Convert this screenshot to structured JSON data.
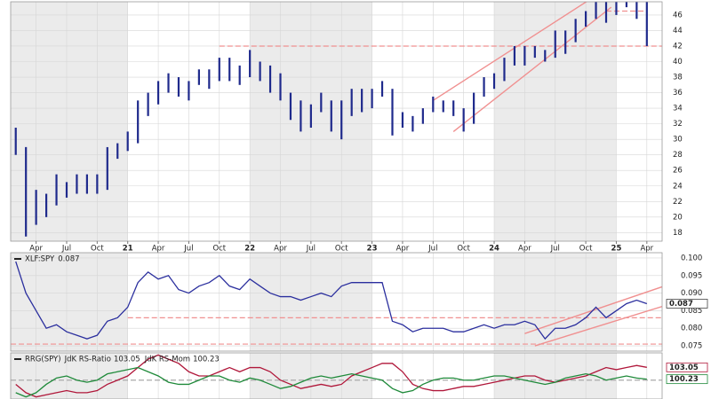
{
  "chart_data": [
    {
      "type": "ohlc",
      "color": "#1f2a8c",
      "annotation_color": "#f09090",
      "x": [
        0,
        1,
        2,
        3,
        4,
        5,
        6,
        7,
        8,
        9,
        10,
        11,
        12,
        13,
        14,
        15,
        16,
        17,
        18,
        19,
        20,
        21,
        22,
        23,
        24,
        25,
        26,
        27,
        28,
        29,
        30,
        31,
        32,
        33,
        34,
        35,
        36,
        37,
        38,
        39,
        40,
        41,
        42,
        43,
        44,
        45,
        46,
        47,
        48,
        49,
        50,
        51,
        52,
        53,
        54,
        55,
        56,
        57,
        58,
        59,
        60,
        61,
        62
      ],
      "high": [
        31.5,
        29,
        23.5,
        23,
        25.5,
        24.5,
        25.5,
        25.5,
        25.5,
        29,
        29.5,
        31,
        35,
        36,
        37.5,
        38.5,
        38,
        37.5,
        39,
        39,
        40.5,
        40.5,
        39.5,
        41.5,
        40,
        39.5,
        38.5,
        36,
        35,
        34.5,
        36,
        35,
        35,
        36.5,
        36.5,
        36.5,
        37.5,
        36.5,
        33.5,
        33,
        34,
        35.5,
        35,
        35,
        34,
        36,
        38,
        38.5,
        40.5,
        42,
        42,
        42,
        41.5,
        44,
        44,
        45.5,
        46.5,
        49,
        48.5,
        48.5,
        48.5,
        48.5,
        48.5
      ],
      "low": [
        28,
        17.5,
        19,
        20,
        21.5,
        22.5,
        23,
        23,
        23,
        23.5,
        27.5,
        28.5,
        29.5,
        33,
        34.5,
        36,
        35.5,
        35,
        37,
        36.5,
        37.5,
        37.5,
        37,
        38,
        37.5,
        36,
        35,
        32.5,
        31,
        31.5,
        33.5,
        31,
        30,
        33,
        33.5,
        34,
        35.5,
        30.5,
        31.5,
        31,
        32,
        33.5,
        33.5,
        33,
        31,
        32,
        35.5,
        36.5,
        37.5,
        39.5,
        39.5,
        40.5,
        40,
        40.5,
        41,
        42.5,
        44.5,
        45.5,
        45,
        46,
        47,
        45.5,
        42
      ],
      "xlim": [
        -0.5,
        63.5
      ],
      "xticks": [
        {
          "value": 2,
          "label": "Apr"
        },
        {
          "value": 5,
          "label": "Jul"
        },
        {
          "value": 8,
          "label": "Oct"
        },
        {
          "value": 11,
          "label": "21"
        },
        {
          "value": 14,
          "label": "Apr"
        },
        {
          "value": 17,
          "label": "Jul"
        },
        {
          "value": 20,
          "label": "Oct"
        },
        {
          "value": 23,
          "label": "22"
        },
        {
          "value": 26,
          "label": "Apr"
        },
        {
          "value": 29,
          "label": "Jul"
        },
        {
          "value": 32,
          "label": "Oct"
        },
        {
          "value": 35,
          "label": "23"
        },
        {
          "value": 38,
          "label": "Apr"
        },
        {
          "value": 41,
          "label": "Jul"
        },
        {
          "value": 44,
          "label": "Oct"
        },
        {
          "value": 47,
          "label": "24"
        },
        {
          "value": 50,
          "label": "Apr"
        },
        {
          "value": 53,
          "label": "Jul"
        },
        {
          "value": 56,
          "label": "Oct"
        },
        {
          "value": 59,
          "label": "25"
        },
        {
          "value": 62,
          "label": "Apr"
        }
      ],
      "ylim": [
        16.9,
        47.7
      ],
      "yticks": [
        18,
        20,
        22,
        24,
        26,
        28,
        30,
        32,
        34,
        36,
        38,
        40,
        42,
        44,
        46
      ],
      "hlines": [
        {
          "value": 42,
          "x": [
            20,
            63.5
          ]
        },
        {
          "value": 46.5,
          "x": [
            58,
            62
          ]
        }
      ],
      "trendlines": [
        {
          "x": [
            41,
            57
          ],
          "y": [
            35,
            48.5
          ]
        },
        {
          "x": [
            43,
            58.5
          ],
          "y": [
            31,
            47
          ]
        }
      ]
    },
    {
      "type": "line",
      "title": "XLF:SPY",
      "annotation_color": "#f09090",
      "x": [
        0,
        1,
        2,
        3,
        4,
        5,
        6,
        7,
        8,
        9,
        10,
        11,
        12,
        13,
        14,
        15,
        16,
        17,
        18,
        19,
        20,
        21,
        22,
        23,
        24,
        25,
        26,
        27,
        28,
        29,
        30,
        31,
        32,
        33,
        34,
        35,
        36,
        37,
        38,
        39,
        40,
        41,
        42,
        43,
        44,
        45,
        46,
        47,
        48,
        49,
        50,
        51,
        52,
        53,
        54,
        55,
        56,
        57,
        58,
        59,
        60,
        61,
        62
      ],
      "series": [
        {
          "color": "#2b2f9e",
          "values": [
            0.099,
            0.09,
            0.085,
            0.08,
            0.081,
            0.079,
            0.078,
            0.077,
            0.078,
            0.082,
            0.083,
            0.086,
            0.093,
            0.096,
            0.094,
            0.095,
            0.091,
            0.09,
            0.092,
            0.093,
            0.095,
            0.092,
            0.091,
            0.094,
            0.092,
            0.09,
            0.089,
            0.089,
            0.088,
            0.089,
            0.09,
            0.089,
            0.092,
            0.093,
            0.093,
            0.093,
            0.093,
            0.082,
            0.081,
            0.079,
            0.08,
            0.08,
            0.08,
            0.079,
            0.079,
            0.08,
            0.081,
            0.08,
            0.081,
            0.081,
            0.082,
            0.081,
            0.077,
            0.08,
            0.08,
            0.081,
            0.083,
            0.086,
            0.083,
            0.085,
            0.087,
            0.088,
            0.087
          ]
        }
      ],
      "xlim": [
        -0.5,
        63.5
      ],
      "ylim": [
        0.0735,
        0.1015
      ],
      "yticks": [
        0.075,
        {
          "value": 0.08,
          "label": "0.080"
        },
        0.085,
        {
          "value": 0.09,
          "label": "0.090"
        },
        0.095,
        {
          "value": 0.1,
          "label": "0.100"
        }
      ],
      "hlines": [
        {
          "value": 0.083,
          "x": [
            11,
            63.5
          ]
        },
        {
          "value": 0.0755,
          "x": [
            -0.5,
            63.5
          ]
        }
      ],
      "trendlines": [
        {
          "x": [
            50,
            63.5
          ],
          "y": [
            0.0785,
            0.0918
          ]
        },
        {
          "x": [
            51,
            63.5
          ],
          "y": [
            0.075,
            0.0862
          ]
        }
      ]
    },
    {
      "type": "line",
      "title": "RRG(SPY)",
      "annotation_color": "#aaaaaa",
      "x": [
        0,
        1,
        2,
        3,
        4,
        5,
        6,
        7,
        8,
        9,
        10,
        11,
        12,
        13,
        14,
        15,
        16,
        17,
        18,
        19,
        20,
        21,
        22,
        23,
        24,
        25,
        26,
        27,
        28,
        29,
        30,
        31,
        32,
        33,
        34,
        35,
        36,
        37,
        38,
        39,
        40,
        41,
        42,
        43,
        44,
        45,
        46,
        47,
        48,
        49,
        50,
        51,
        52,
        53,
        54,
        55,
        56,
        57,
        58,
        59,
        60,
        61,
        62
      ],
      "series": [
        {
          "name": "JdK RS-Ratio",
          "color": "#b0173a",
          "values": [
            99,
            97,
            96,
            96.5,
            97,
            97.5,
            97,
            97,
            97.5,
            99,
            100,
            101,
            103,
            105,
            106,
            105,
            104,
            102,
            101,
            101,
            102,
            103,
            102,
            103,
            103,
            102,
            100,
            99,
            98,
            98.5,
            99,
            98.5,
            99,
            101,
            102,
            103,
            104,
            104,
            102,
            99,
            98,
            97.5,
            97.5,
            98,
            98.5,
            98.5,
            99,
            99.5,
            100,
            100.5,
            101,
            101,
            100,
            99.5,
            100,
            100.5,
            101,
            102,
            103,
            102.5,
            103,
            103.5,
            103.05
          ]
        },
        {
          "name": "JdK RS-Mom",
          "color": "#1f8a3a",
          "values": [
            97,
            96,
            97,
            99,
            100.5,
            101,
            100,
            99.5,
            100,
            101.5,
            102,
            102.5,
            103,
            102,
            101,
            99.5,
            99,
            99,
            100,
            101,
            101,
            100,
            99.5,
            100.5,
            100,
            99,
            98,
            98.5,
            99.5,
            100.5,
            101,
            100.5,
            101,
            101.5,
            101,
            100.5,
            100,
            98,
            97,
            97.5,
            99,
            100,
            100.5,
            100.5,
            100,
            100,
            100.5,
            101,
            101,
            100.5,
            100,
            99.5,
            99,
            99.5,
            100.5,
            101,
            101.5,
            101,
            100,
            100.5,
            101,
            100.5,
            100.23
          ]
        }
      ],
      "xlim": [
        -0.5,
        63.5
      ],
      "ylim": [
        95.5,
        106.5
      ],
      "hlines": [
        {
          "value": 100,
          "x": [
            -0.5,
            63.5
          ]
        }
      ]
    }
  ]
}
